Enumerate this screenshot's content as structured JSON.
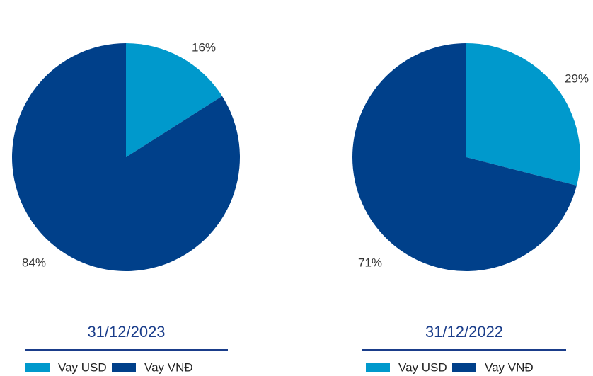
{
  "chart_data": [
    {
      "type": "pie",
      "title": "31/12/2023",
      "categories": [
        "Vay USD",
        "Vay VNĐ"
      ],
      "values": [
        16,
        84
      ],
      "value_labels": [
        "16%",
        "84%"
      ],
      "colors": [
        "#0099cc",
        "#00408a"
      ]
    },
    {
      "type": "pie",
      "title": "31/12/2022",
      "categories": [
        "Vay USD",
        "Vay VNĐ"
      ],
      "values": [
        29,
        71
      ],
      "value_labels": [
        "29%",
        "71%"
      ],
      "colors": [
        "#0099cc",
        "#00408a"
      ]
    }
  ]
}
